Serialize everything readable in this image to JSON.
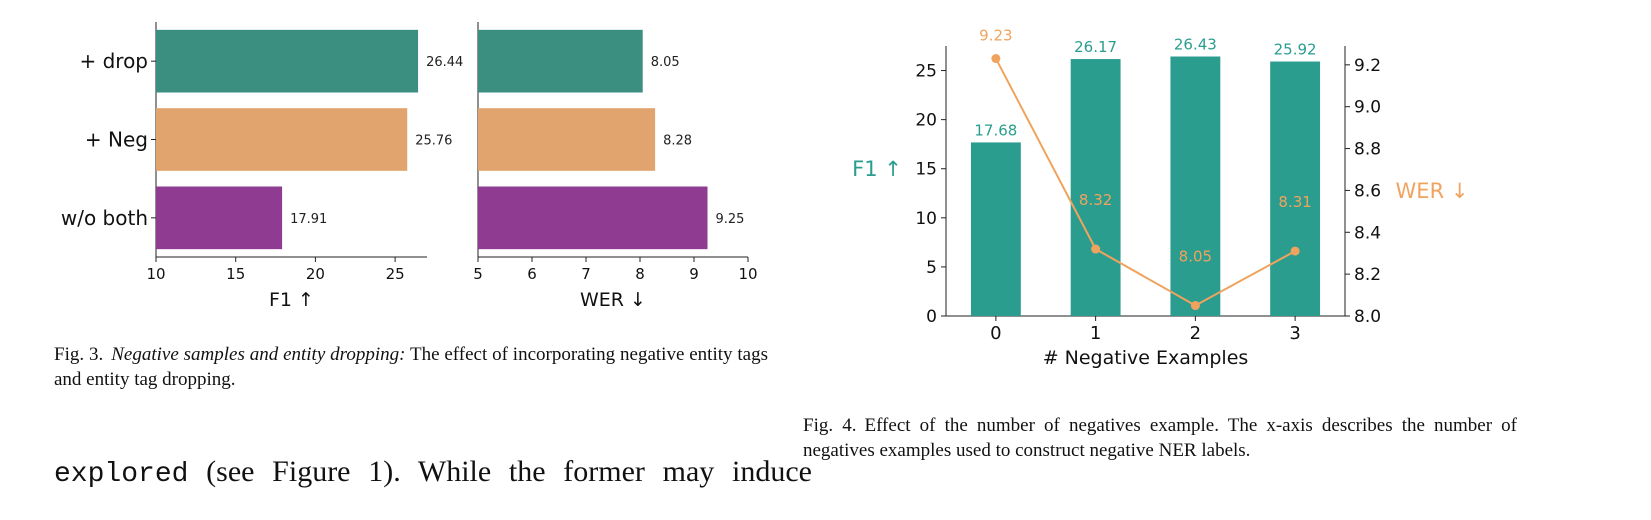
{
  "figure3": {
    "caption_label": "Fig. 3.",
    "caption_title": "Negative samples and entity dropping:",
    "caption_text": " The effect of incorporating negative entity tags and entity tag dropping."
  },
  "figure4": {
    "caption_label": "Fig. 4.",
    "caption_text": "Effect of the number of negatives example. The x-axis describes the number of negatives examples used to construct negative NER labels."
  },
  "body_text": {
    "code": "explored",
    "rest": " (see Figure 1). While the former may induce"
  },
  "chart_data": [
    {
      "type": "bar",
      "orientation": "horizontal",
      "categories": [
        "+ drop",
        "+ Neg",
        "w/o both"
      ],
      "values": [
        26.44,
        25.76,
        17.91
      ],
      "data_labels": [
        "26.44",
        "25.76",
        "17.91"
      ],
      "colors": [
        "#3a8f80",
        "#e2a46f",
        "#8e3b91"
      ],
      "xlabel": "F1 ↑",
      "xlim": [
        10,
        27
      ],
      "xticks": [
        10,
        15,
        20,
        25
      ]
    },
    {
      "type": "bar",
      "orientation": "horizontal",
      "categories": [
        "+ drop",
        "+ Neg",
        "w/o both"
      ],
      "values": [
        8.05,
        8.28,
        9.25
      ],
      "data_labels": [
        "8.05",
        "8.28",
        "9.25"
      ],
      "colors": [
        "#3a8f80",
        "#e2a46f",
        "#8e3b91"
      ],
      "xlabel": "WER ↓",
      "xlim": [
        5,
        10
      ],
      "xticks": [
        5,
        6,
        7,
        8,
        9,
        10
      ]
    },
    {
      "type": "bar+line",
      "categories": [
        "0",
        "1",
        "2",
        "3"
      ],
      "xlabel": "# Negative Examples",
      "bar_series": {
        "values": [
          17.68,
          26.17,
          26.43,
          25.92
        ],
        "data_labels": [
          "17.68",
          "26.17",
          "26.43",
          "25.92"
        ],
        "color": "#2a9d8f",
        "axis_label": "F1 ↑",
        "ylim": [
          0,
          27.5
        ],
        "yticks": [
          0,
          5,
          10,
          15,
          20,
          25
        ]
      },
      "line_series": {
        "values": [
          9.23,
          8.32,
          8.05,
          8.31
        ],
        "data_labels": [
          "9.23",
          "8.32",
          "8.05",
          "8.31"
        ],
        "color": "#f0a35e",
        "axis_label": "WER ↓",
        "ylim": [
          8.0,
          9.29
        ],
        "yticks": [
          8.0,
          8.2,
          8.4,
          8.6,
          8.8,
          9.0,
          9.2
        ],
        "ytick_labels": [
          "8.0",
          "8.2",
          "8.4",
          "8.6",
          "8.8",
          "9.0",
          "9.2"
        ]
      }
    }
  ]
}
